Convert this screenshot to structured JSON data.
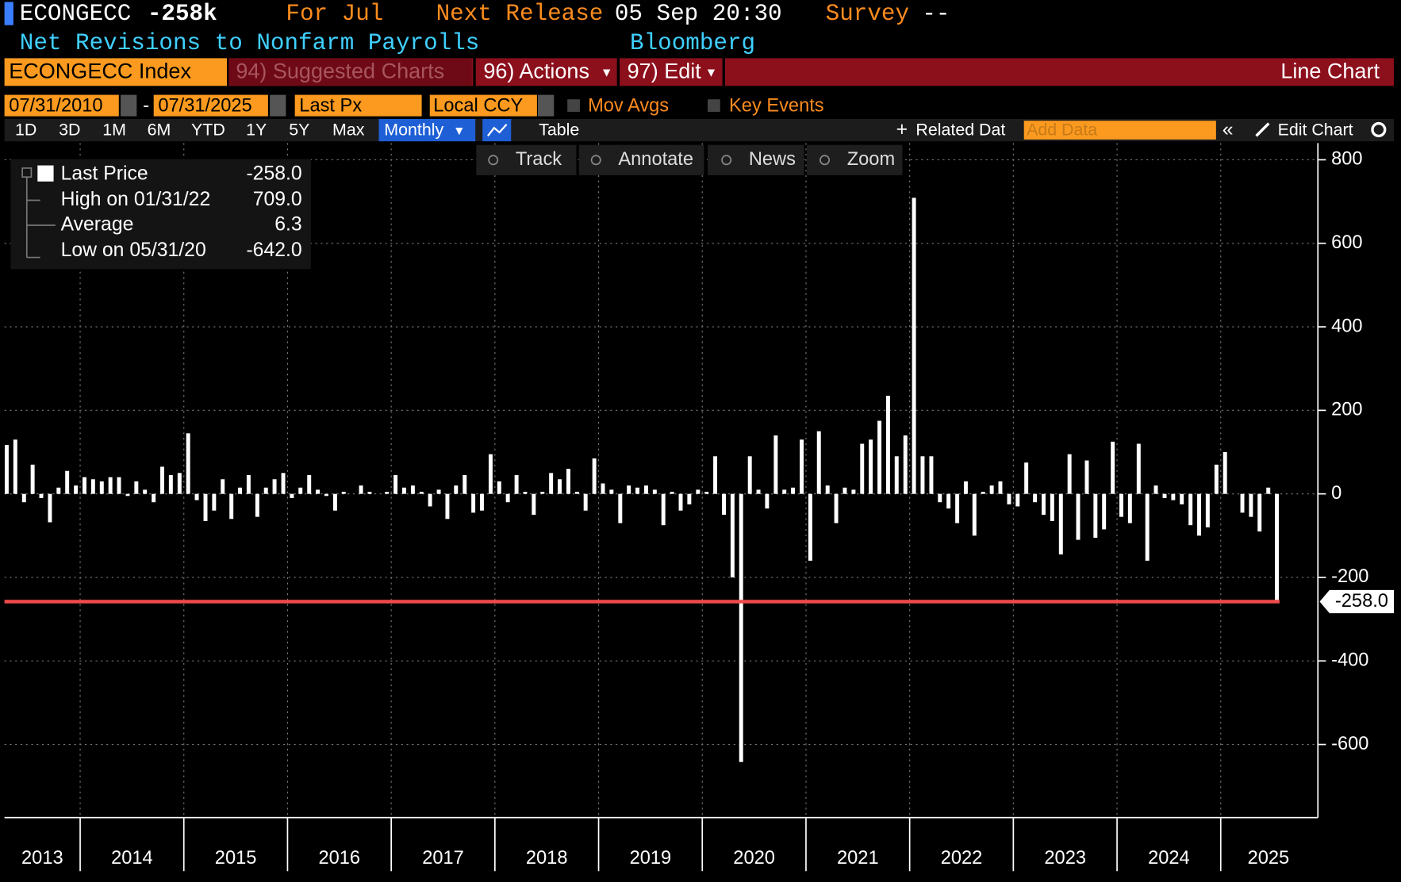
{
  "header": {
    "ticker": "ECONGECC",
    "value": "-258k",
    "period": "For Jul",
    "next_release_label": "Next Release",
    "next_release": "05 Sep 20:30",
    "survey_label": "Survey",
    "survey": "--",
    "description": "Net Revisions to Nonfarm Payrolls",
    "source": "Bloomberg"
  },
  "toolbar": {
    "security": "ECONGECC Index",
    "suggested": "94) Suggested Charts",
    "actions": "96) Actions",
    "edit": "97) Edit",
    "chart_kind": "Line Chart",
    "start_date": "07/31/2010",
    "date_sep": "-",
    "end_date": "07/31/2025",
    "field": "Last Px",
    "currency": "Local CCY",
    "mov_avgs": "Mov Avgs",
    "key_events": "Key Events",
    "periods": [
      "1D",
      "3D",
      "1M",
      "6M",
      "YTD",
      "1Y",
      "5Y",
      "Max"
    ],
    "frequency": "Monthly",
    "table": "Table",
    "related": "Related Dat",
    "add_data": "Add Data",
    "edit_chart": "Edit Chart",
    "tools": [
      "Track",
      "Annotate",
      "News",
      "Zoom"
    ]
  },
  "chart_data": {
    "type": "bar",
    "color": "#ffffff",
    "grid": true,
    "x": [
      2013.25,
      2013.333,
      2013.417,
      2013.5,
      2013.583,
      2013.667,
      2013.75,
      2013.833,
      2013.917,
      2014,
      2014.083,
      2014.167,
      2014.25,
      2014.333,
      2014.417,
      2014.5,
      2014.583,
      2014.667,
      2014.75,
      2014.833,
      2014.917,
      2015,
      2015.083,
      2015.167,
      2015.25,
      2015.333,
      2015.417,
      2015.5,
      2015.583,
      2015.667,
      2015.75,
      2015.833,
      2015.917,
      2016,
      2016.083,
      2016.167,
      2016.25,
      2016.333,
      2016.417,
      2016.5,
      2016.583,
      2016.667,
      2016.75,
      2016.833,
      2016.917,
      2017,
      2017.083,
      2017.167,
      2017.25,
      2017.333,
      2017.417,
      2017.5,
      2017.583,
      2017.667,
      2017.75,
      2017.833,
      2017.917,
      2018,
      2018.083,
      2018.167,
      2018.25,
      2018.333,
      2018.417,
      2018.5,
      2018.583,
      2018.667,
      2018.75,
      2018.833,
      2018.917,
      2019,
      2019.083,
      2019.167,
      2019.25,
      2019.333,
      2019.417,
      2019.5,
      2019.583,
      2019.667,
      2019.75,
      2019.833,
      2019.917,
      2020,
      2020.083,
      2020.167,
      2020.25,
      2020.333,
      2020.417,
      2020.5,
      2020.583,
      2020.667,
      2020.75,
      2020.833,
      2020.917,
      2021,
      2021.083,
      2021.167,
      2021.25,
      2021.333,
      2021.417,
      2021.5,
      2021.583,
      2021.667,
      2021.75,
      2021.833,
      2021.917,
      2022,
      2022.083,
      2022.167,
      2022.25,
      2022.333,
      2022.417,
      2022.5,
      2022.583,
      2022.667,
      2022.75,
      2022.833,
      2022.917,
      2023,
      2023.083,
      2023.167,
      2023.25,
      2023.333,
      2023.417,
      2023.5,
      2023.583,
      2023.667,
      2023.75,
      2023.833,
      2023.917,
      2024,
      2024.083,
      2024.167,
      2024.25,
      2024.333,
      2024.417,
      2024.5,
      2024.583,
      2024.667,
      2024.75,
      2024.833,
      2024.917,
      2025,
      2025.083,
      2025.167,
      2025.25,
      2025.333,
      2025.417,
      2025.5
    ],
    "values": [
      117,
      130,
      -20,
      70,
      -10,
      -68,
      15,
      55,
      20,
      40,
      35,
      30,
      40,
      40,
      -5,
      30,
      10,
      -20,
      65,
      45,
      50,
      145,
      -15,
      -65,
      -40,
      35,
      -60,
      15,
      45,
      -55,
      15,
      35,
      50,
      -10,
      15,
      45,
      10,
      -5,
      -40,
      5,
      0,
      20,
      5,
      0,
      5,
      45,
      15,
      20,
      5,
      -30,
      10,
      -60,
      20,
      45,
      -45,
      -40,
      95,
      30,
      -20,
      45,
      5,
      -50,
      5,
      50,
      35,
      60,
      5,
      -40,
      85,
      25,
      10,
      -70,
      20,
      15,
      20,
      10,
      -75,
      5,
      -40,
      -25,
      10,
      5,
      90,
      -50,
      -200,
      -642,
      90,
      10,
      -35,
      140,
      10,
      15,
      130,
      -160,
      150,
      20,
      -70,
      15,
      10,
      120,
      130,
      175,
      235,
      90,
      140,
      709,
      90,
      90,
      -20,
      -35,
      -70,
      30,
      -100,
      5,
      20,
      30,
      -25,
      -30,
      75,
      -20,
      -50,
      -65,
      -145,
      95,
      -110,
      80,
      -105,
      -85,
      125,
      -55,
      -70,
      120,
      -160,
      20,
      -10,
      -15,
      -25,
      -75,
      -100,
      -80,
      70,
      100,
      0,
      -45,
      -55,
      -90,
      15,
      -258
    ],
    "xlim": [
      2013.27,
      2025.92
    ],
    "ylim": [
      -775,
      840
    ],
    "yticks": [
      -600,
      -400,
      -200,
      0,
      200,
      400,
      600,
      800
    ],
    "xticks": [
      2014,
      2015,
      2016,
      2017,
      2018,
      2019,
      2020,
      2021,
      2022,
      2023,
      2024,
      2025
    ],
    "year_labels": [
      2013,
      2014,
      2015,
      2016,
      2017,
      2018,
      2019,
      2020,
      2021,
      2022,
      2023,
      2024,
      2025
    ],
    "legend": [
      {
        "label": "Last Price",
        "value": "-258.0"
      },
      {
        "label": "High on 01/31/22",
        "value": "709.0"
      },
      {
        "label": "Average",
        "value": "6.3"
      },
      {
        "label": "Low on 05/31/20",
        "value": "-642.0"
      }
    ],
    "last_price": {
      "value": -258,
      "label": "-258.0"
    },
    "last_price_color": "#ee4b4b"
  }
}
